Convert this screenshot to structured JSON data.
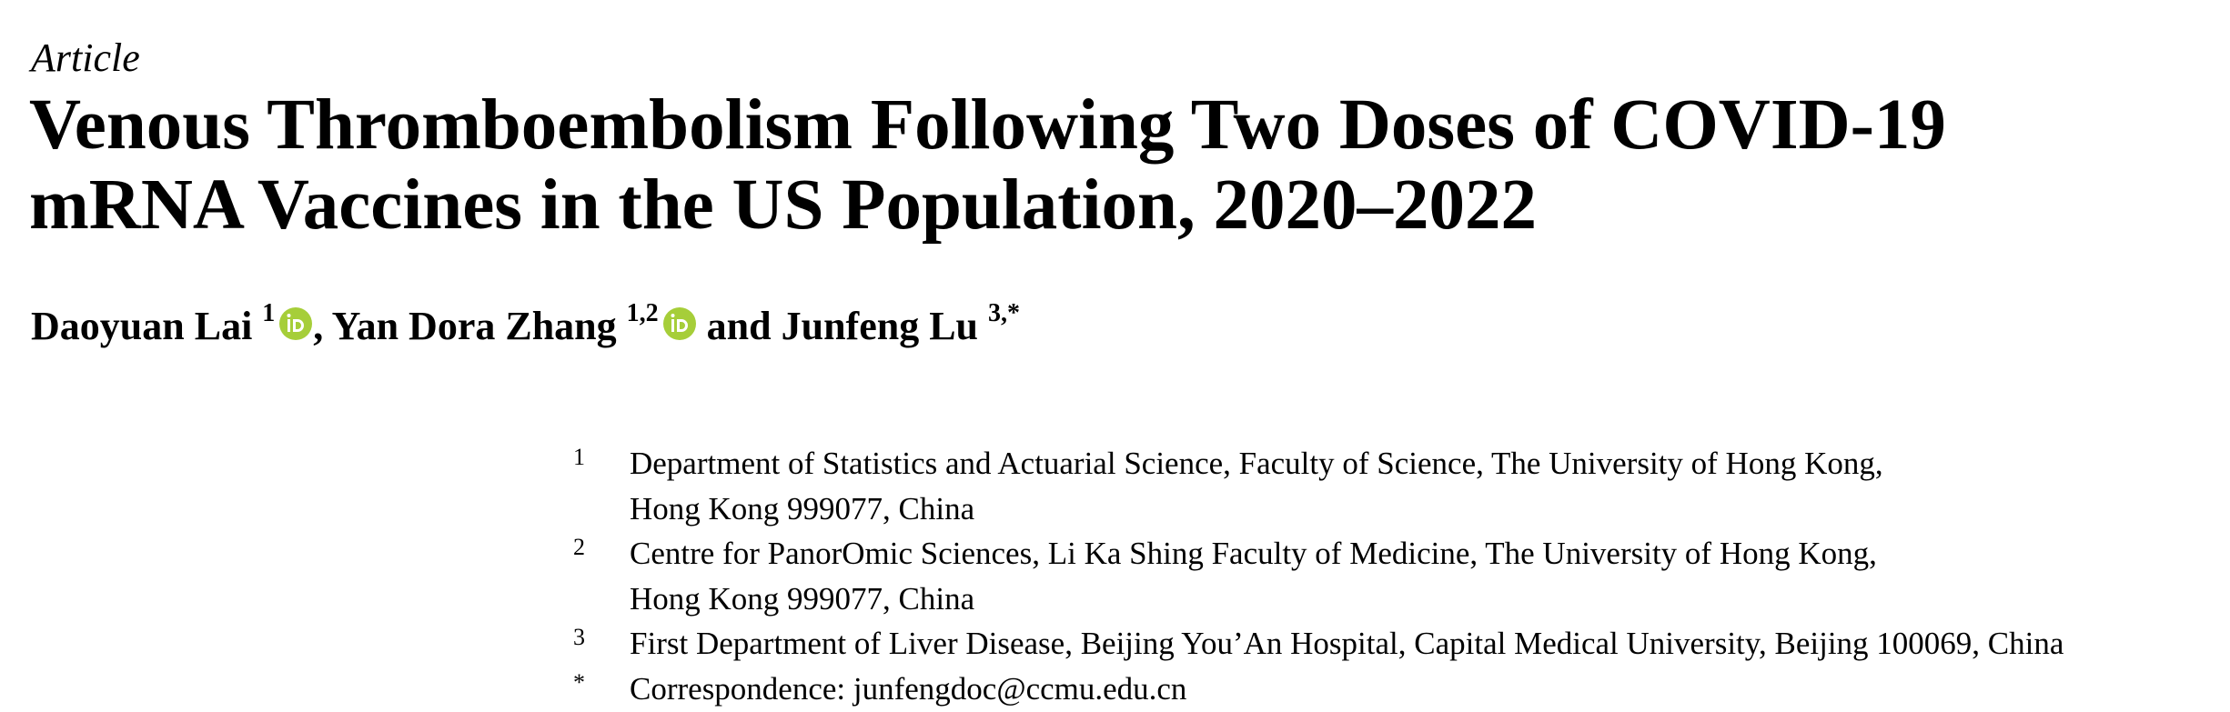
{
  "header": {
    "label": "Article",
    "title": [
      "Venous Thromboembolism Following Two Doses of COVID-19",
      "mRNA Vaccines in the US Population, 2020–2022"
    ]
  },
  "authors": [
    {
      "name": "Daoyuan Lai",
      "sup": "1",
      "orcid": true,
      "after": ","
    },
    {
      "name": "Yan Dora Zhang",
      "sup": "1,2",
      "orcid": true,
      "after": "and"
    },
    {
      "name": "Junfeng Lu",
      "sup": "3,*",
      "orcid": false
    }
  ],
  "affiliations": [
    {
      "marker": "1",
      "lines": [
        "Department of Statistics and Actuarial Science, Faculty of Science, The University of Hong Kong,",
        "Hong Kong 999077, China"
      ]
    },
    {
      "marker": "2",
      "lines": [
        "Centre for PanorOmic Sciences, Li Ka Shing Faculty of Medicine, The University of Hong Kong,",
        "Hong Kong 999077, China"
      ]
    },
    {
      "marker": "3",
      "lines": [
        "First Department of Liver Disease, Beijing You’An Hospital, Capital Medical University, Beijing 100069, China"
      ]
    },
    {
      "marker": "*",
      "lines": [
        "Correspondence: junfengdoc@ccmu.edu.cn"
      ]
    }
  ]
}
